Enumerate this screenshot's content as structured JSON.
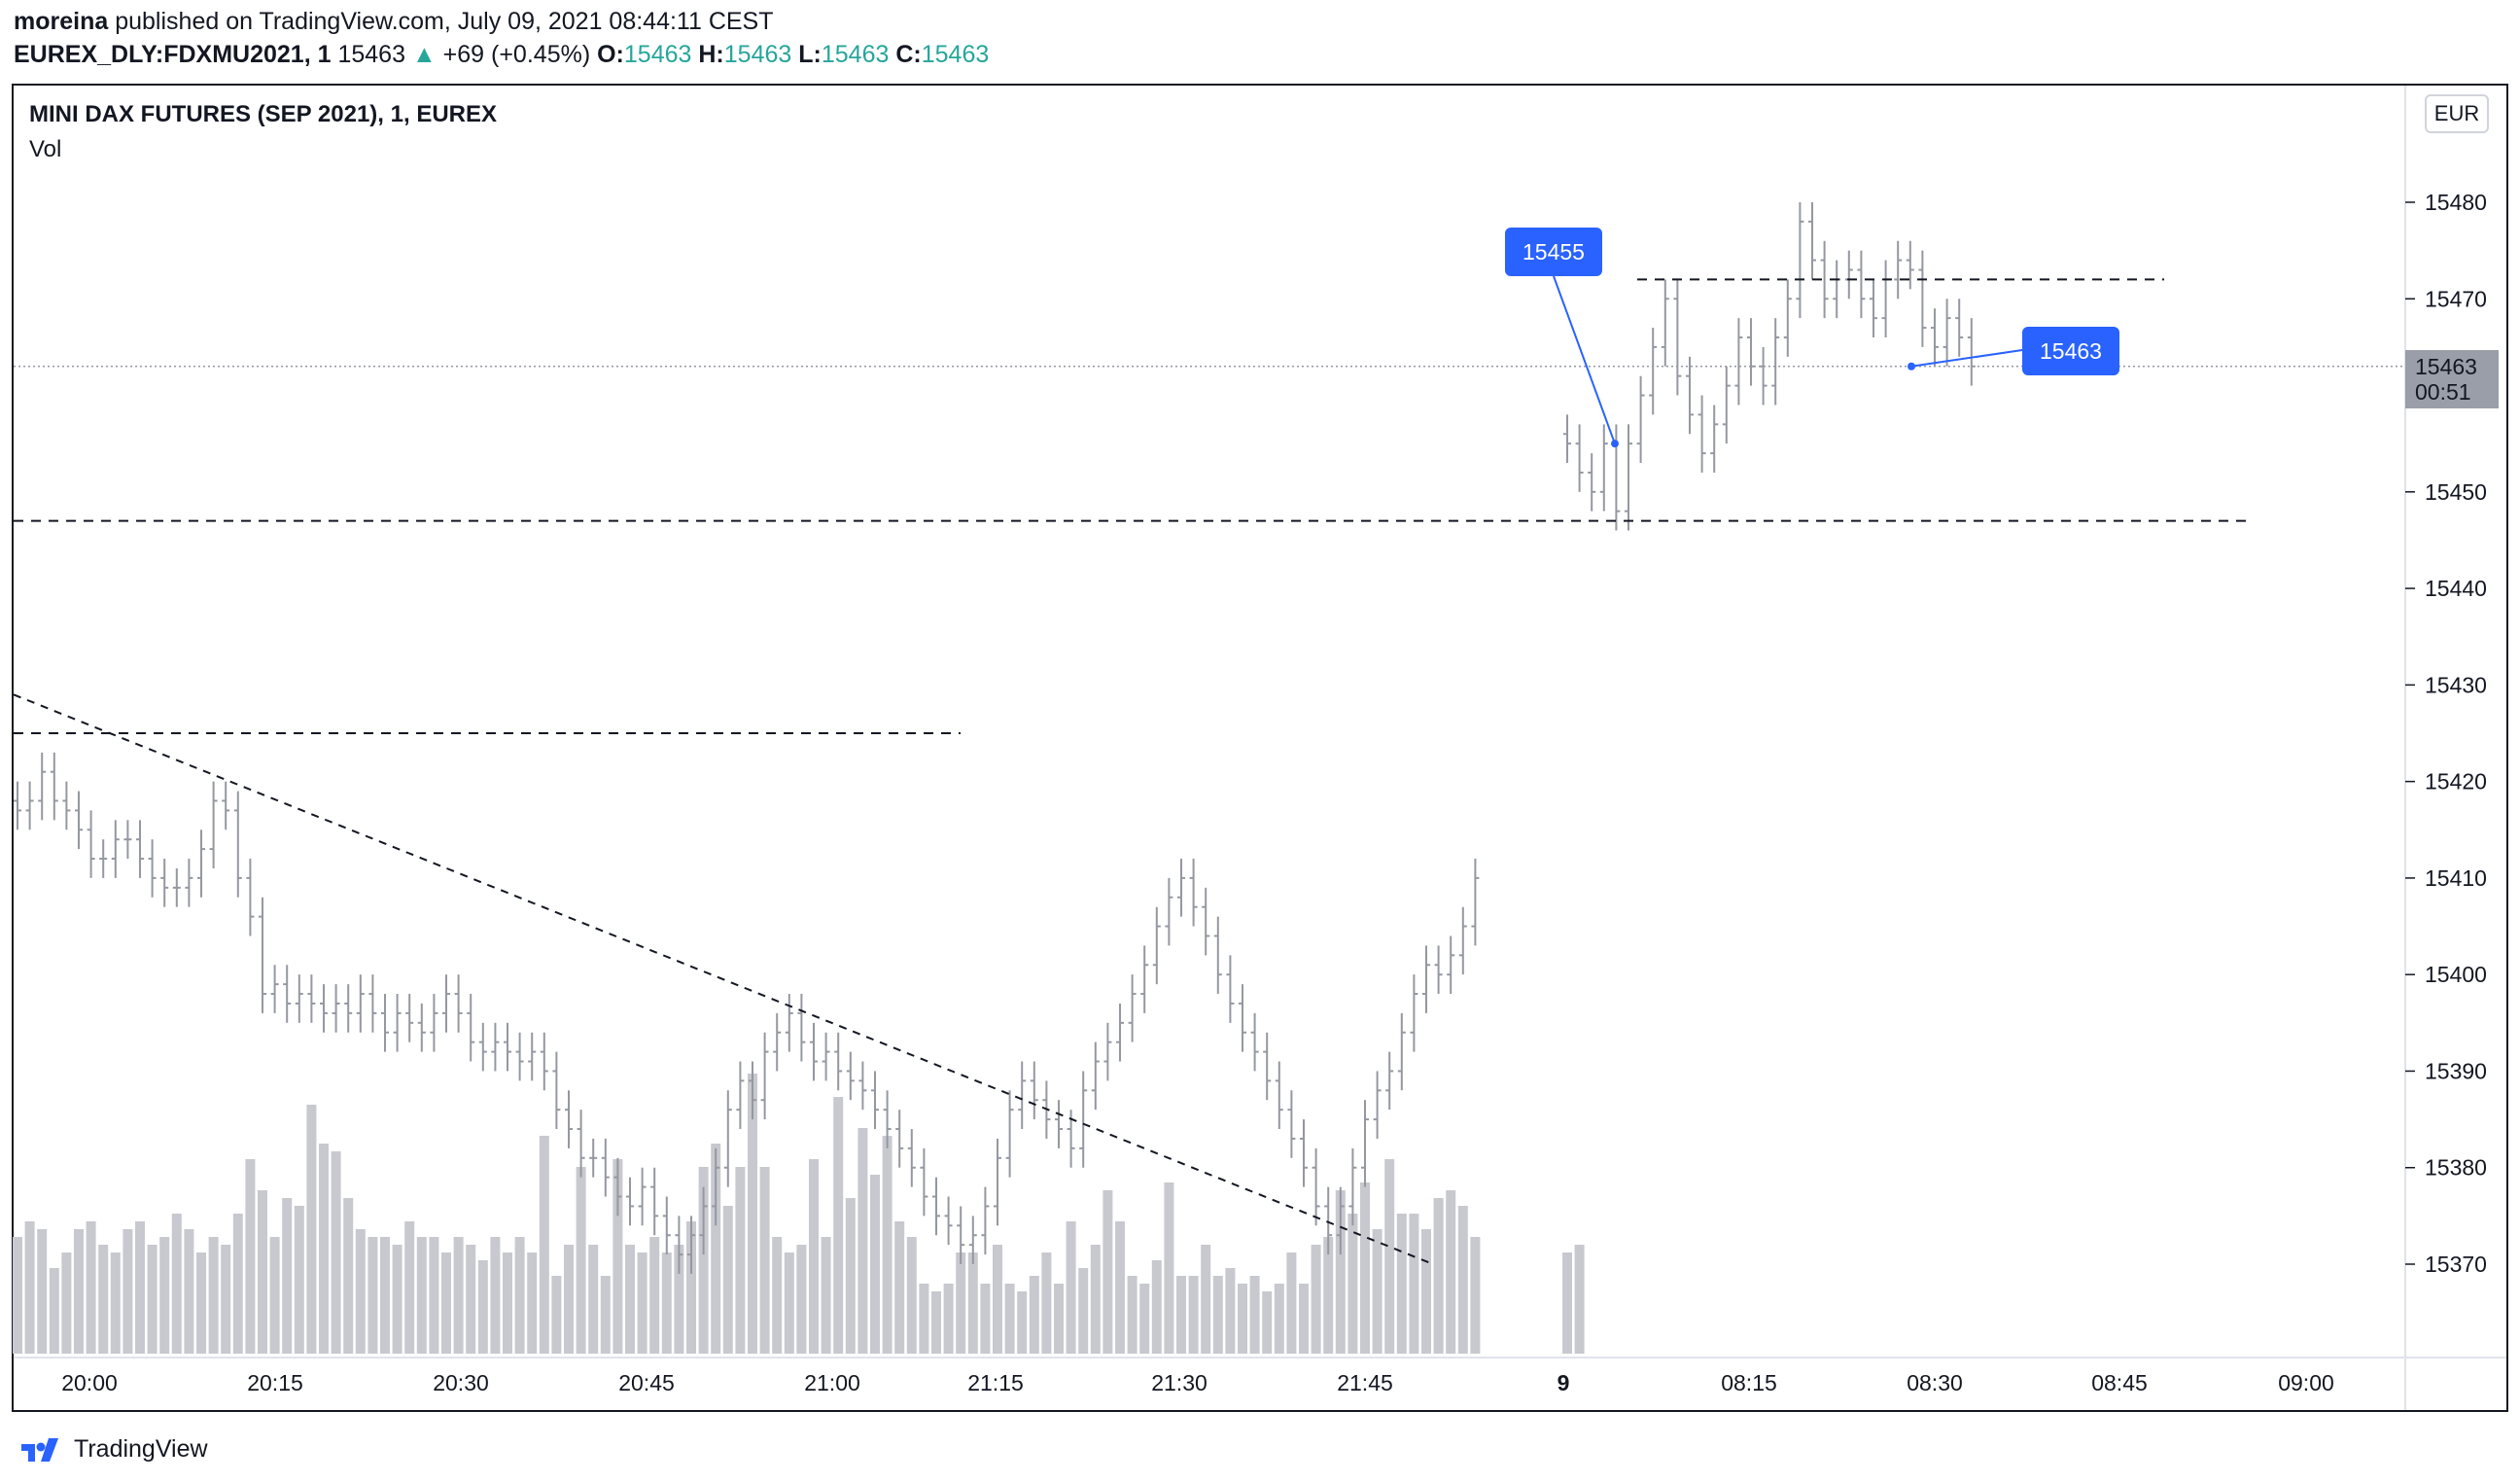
{
  "header": {
    "publisher": "moreina",
    "published_text": "published on TradingView.com, July 09, 2021 08:44:11 CEST",
    "symbol": "EUREX_DLY:FDXMU2021, 1",
    "last": "15463",
    "arrow": "▲",
    "change": "+69 (+0.45%)",
    "o_label": "O:",
    "o_value": "15463",
    "h_label": "H:",
    "h_value": "15463",
    "l_label": "L:",
    "l_value": "15463",
    "c_label": "C:",
    "c_value": "15463"
  },
  "chart_header": {
    "title": "MINI DAX FUTURES (SEP 2021), 1, EUREX",
    "volume_label": "Vol"
  },
  "currency": "EUR",
  "current_price": {
    "price": "15463",
    "countdown": "00:51"
  },
  "footer": {
    "brand": "TradingView"
  },
  "colors": {
    "accent": "#2962ff",
    "up": "#26a69a",
    "bar": "#9598a1",
    "volume": "#c8c9cf"
  },
  "chart_data": {
    "type": "ohlc_bar",
    "title": "MINI DAX FUTURES (SEP 2021), 1, EUREX",
    "ylim": [
      15362,
      15492
    ],
    "yticks": [
      15370,
      15380,
      15390,
      15400,
      15410,
      15420,
      15430,
      15440,
      15450,
      15460,
      15470,
      15480
    ],
    "xticks": [
      "20:00",
      "20:15",
      "20:30",
      "20:45",
      "21:00",
      "21:15",
      "21:30",
      "21:45",
      "9",
      "08:15",
      "08:30",
      "08:45",
      "09:00"
    ],
    "session1_close_series": [
      15417,
      15418,
      15421,
      15418,
      15417,
      15415,
      15412,
      15412,
      15414,
      15414,
      15412,
      15410,
      15409,
      15409,
      15410,
      15413,
      15418,
      15417,
      15410,
      15406,
      15398,
      15399,
      15397,
      15398,
      15397,
      15396,
      15397,
      15396,
      15398,
      15396,
      15394,
      15396,
      15395,
      15394,
      15396,
      15398,
      15396,
      15393,
      15392,
      15393,
      15392,
      15391,
      15392,
      15390,
      15386,
      15384,
      15381,
      15381,
      15379,
      15377,
      15376,
      15378,
      15375,
      15373,
      15371,
      15373,
      15376,
      15380,
      15386,
      15389,
      15387,
      15392,
      15394,
      15396,
      15393,
      15391,
      15392,
      15390,
      15389,
      15388,
      15386,
      15384,
      15382,
      15380,
      15377,
      15375,
      15374,
      15372,
      15373,
      15376,
      15381,
      15386,
      15389,
      15387,
      15385,
      15384,
      15382,
      15388,
      15391,
      15393,
      15395,
      15398,
      15401,
      15405,
      15408,
      15410,
      15407,
      15404,
      15400,
      15397,
      15394,
      15392,
      15389,
      15386,
      15383,
      15380,
      15376,
      15373,
      15376,
      15380,
      15385,
      15388,
      15390,
      15394,
      15398,
      15401,
      15400,
      15402,
      15405,
      15410
    ],
    "session2_close_series": [
      15455,
      15452,
      15450,
      15455,
      15448,
      15455,
      15460,
      15465,
      15470,
      15462,
      15458,
      15454,
      15457,
      15461,
      15466,
      15463,
      15461,
      15466,
      15470,
      15478,
      15474,
      15470,
      15472,
      15473,
      15470,
      15468,
      15472,
      15474,
      15473,
      15467,
      15465,
      15468,
      15466,
      15463
    ],
    "volume_relative": [
      0.3,
      0.34,
      0.32,
      0.22,
      0.26,
      0.32,
      0.34,
      0.28,
      0.26,
      0.32,
      0.34,
      0.28,
      0.3,
      0.36,
      0.32,
      0.26,
      0.3,
      0.28,
      0.36,
      0.5,
      0.42,
      0.3,
      0.4,
      0.38,
      0.64,
      0.54,
      0.52,
      0.4,
      0.32,
      0.3,
      0.3,
      0.28,
      0.34,
      0.3,
      0.3,
      0.26,
      0.3,
      0.28,
      0.24,
      0.3,
      0.26,
      0.3,
      0.26,
      0.56,
      0.2,
      0.28,
      0.48,
      0.28,
      0.2,
      0.5,
      0.28,
      0.26,
      0.3,
      0.26,
      0.28,
      0.34,
      0.48,
      0.54,
      0.38,
      0.48,
      0.72,
      0.48,
      0.3,
      0.26,
      0.28,
      0.5,
      0.3,
      0.66,
      0.4,
      0.58,
      0.46,
      0.56,
      0.34,
      0.3,
      0.18,
      0.16,
      0.18,
      0.26,
      0.26,
      0.18,
      0.28,
      0.18,
      0.16,
      0.2,
      0.26,
      0.18,
      0.34,
      0.22,
      0.28,
      0.42,
      0.34,
      0.2,
      0.18,
      0.24,
      0.44,
      0.2,
      0.2,
      0.28,
      0.2,
      0.22,
      0.18,
      0.2,
      0.16,
      0.18,
      0.26,
      0.18,
      0.28,
      0.3,
      0.42,
      0.36,
      0.44,
      0.32,
      0.5,
      0.36,
      0.36,
      0.32,
      0.4,
      0.42,
      0.38,
      0.3,
      0.26,
      0.28
    ],
    "horizontal_levels": [
      15472,
      15447,
      15425
    ],
    "trendline": {
      "from": [
        "19:54",
        15429
      ],
      "to": [
        "21:56",
        15370
      ]
    },
    "callouts": [
      {
        "text": "15455",
        "price": 15455
      },
      {
        "text": "15463",
        "price": 15463
      }
    ]
  }
}
